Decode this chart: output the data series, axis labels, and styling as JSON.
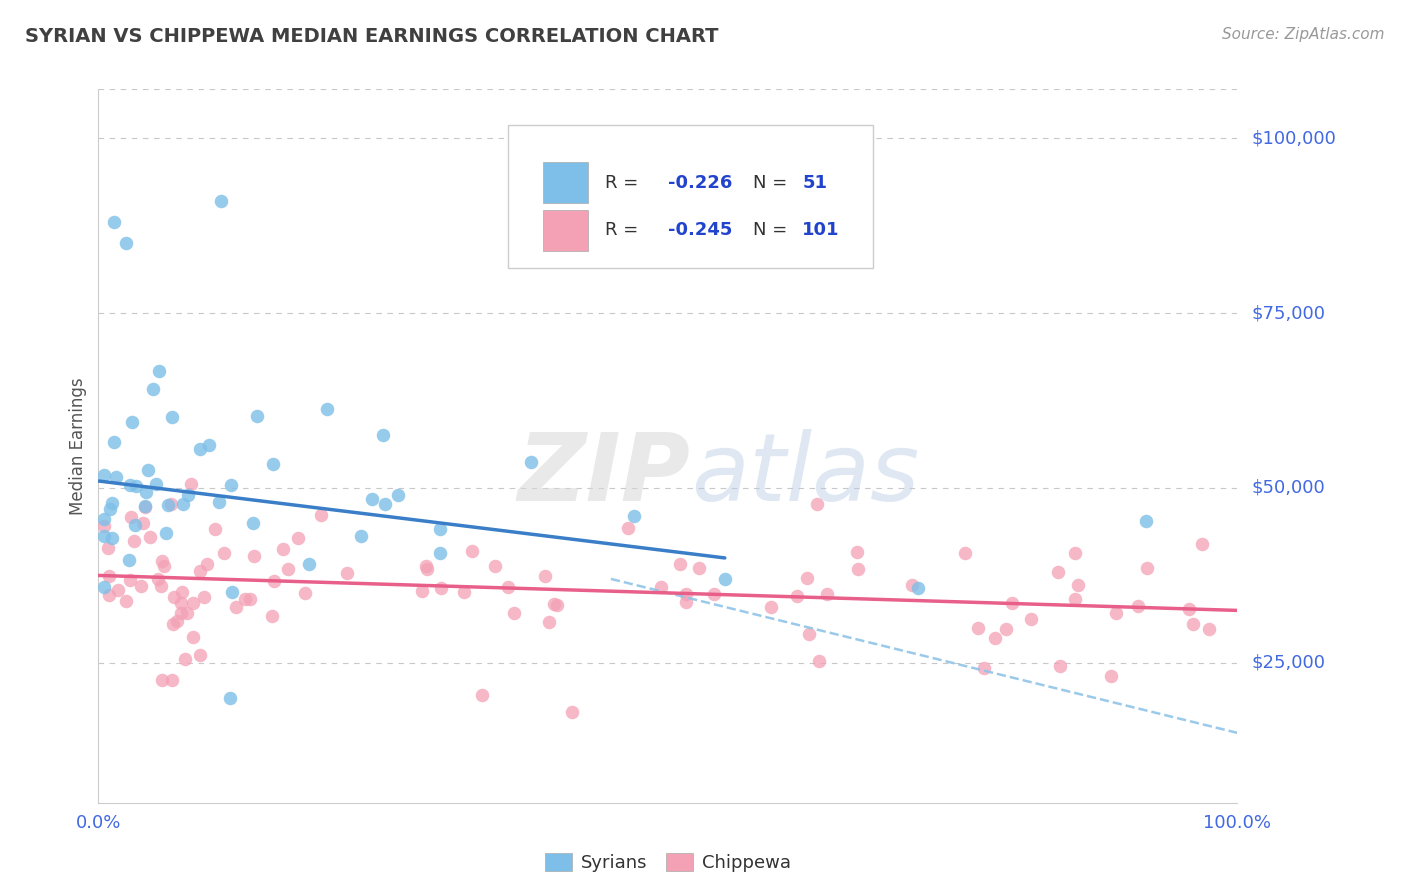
{
  "title": "SYRIAN VS CHIPPEWA MEDIAN EARNINGS CORRELATION CHART",
  "source": "Source: ZipAtlas.com",
  "ylabel": "Median Earnings",
  "yticks": [
    0,
    25000,
    50000,
    75000,
    100000
  ],
  "ytick_labels": [
    "",
    "$25,000",
    "$50,000",
    "$75,000",
    "$100,000"
  ],
  "xmin": 0.0,
  "xmax": 100.0,
  "ymin": 5000,
  "ymax": 107000,
  "syrians_R": -0.226,
  "syrians_N": 51,
  "chippewa_R": -0.245,
  "chippewa_N": 101,
  "syrian_color": "#7dbfe8",
  "chippewa_color": "#f4a0b5",
  "syrian_line_color": "#3a7ec8",
  "chippewa_line_color": "#e8608a",
  "dashed_line_color": "#90c4e8",
  "title_color": "#404040",
  "source_color": "#999999",
  "axis_label_color": "#4169E1",
  "legend_color": "#2244cc",
  "background_color": "#ffffff",
  "grid_color": "#c8c8c8",
  "syrian_intercept": 51000,
  "syrian_slope": -200,
  "chippewa_intercept": 37500,
  "chippewa_slope": -50,
  "dashed_slope": -450
}
